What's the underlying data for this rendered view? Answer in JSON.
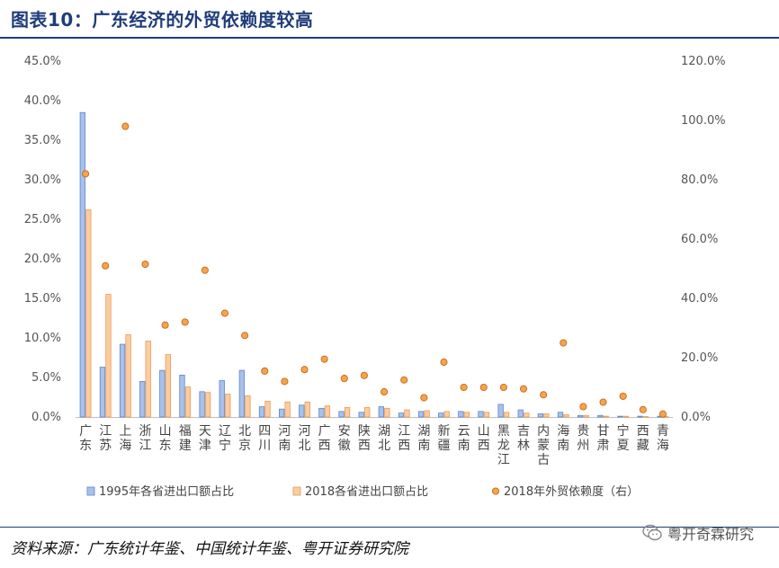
{
  "header": {
    "title": "图表10：广东经济的外贸依赖度较高"
  },
  "footer": {
    "source": "资料来源：广东统计年鉴、中国统计年鉴、粤开证券研究院",
    "watermark": "粤开奇霖研究"
  },
  "icons": {
    "watermark_icon": "wechat-icon"
  },
  "colors": {
    "title": "#1f3d7a",
    "series_1995_fill": "#a9c1ea",
    "series_1995_stroke": "#5b86cf",
    "series_2018_fill": "#fbcca0",
    "series_2018_stroke": "#eb9a52",
    "dot_fill": "#f5a34c",
    "dot_stroke": "#c56a17"
  },
  "chart_data": {
    "type": "bar",
    "categories": [
      "广东",
      "江苏",
      "上海",
      "浙江",
      "山东",
      "福建",
      "天津",
      "辽宁",
      "北京",
      "四川",
      "河南",
      "河北",
      "广西",
      "安徽",
      "陕西",
      "湖北",
      "江西",
      "湖南",
      "新疆",
      "云南",
      "山西",
      "黑龙江",
      "吉林",
      "内蒙古",
      "海南",
      "贵州",
      "甘肃",
      "宁夏",
      "西藏",
      "青海"
    ],
    "series": [
      {
        "name": "1995年各省进出口额占比",
        "axis": "left",
        "kind": "bar",
        "values": [
          38.5,
          6.3,
          9.2,
          4.5,
          5.9,
          5.3,
          3.2,
          4.6,
          5.9,
          1.3,
          1.0,
          1.5,
          1.1,
          0.7,
          0.6,
          1.3,
          0.5,
          0.7,
          0.5,
          0.7,
          0.7,
          1.6,
          0.9,
          0.4,
          0.6,
          0.2,
          0.2,
          0.1,
          0.1,
          0.1
        ]
      },
      {
        "name": "2018各省进出口额占比",
        "axis": "left",
        "kind": "bar",
        "values": [
          26.2,
          15.5,
          10.4,
          9.6,
          7.9,
          3.8,
          3.1,
          2.9,
          2.7,
          2.0,
          1.9,
          1.9,
          1.4,
          1.2,
          1.2,
          1.1,
          0.9,
          0.8,
          0.7,
          0.6,
          0.6,
          0.6,
          0.5,
          0.4,
          0.3,
          0.2,
          0.1,
          0.1,
          0.05,
          0.05
        ]
      },
      {
        "name": "2018年外贸依赖度（右）",
        "axis": "right",
        "kind": "scatter",
        "values": [
          82.0,
          51.0,
          98.0,
          51.5,
          31.0,
          32.0,
          49.5,
          35.0,
          27.5,
          15.5,
          12.0,
          16.0,
          19.5,
          13.0,
          14.0,
          8.5,
          12.5,
          6.5,
          18.5,
          10.0,
          10.0,
          10.0,
          9.5,
          7.5,
          25.0,
          3.5,
          5.0,
          7.0,
          2.5,
          1.0
        ]
      }
    ],
    "yleft": {
      "range": [
        0,
        45
      ],
      "ticks": [
        "0.0%",
        "5.0%",
        "10.0%",
        "15.0%",
        "20.0%",
        "25.0%",
        "30.0%",
        "35.0%",
        "40.0%",
        "45.0%"
      ]
    },
    "yright": {
      "range": [
        0,
        120
      ],
      "ticks": [
        "0.0%",
        "20.0%",
        "40.0%",
        "60.0%",
        "80.0%",
        "100.0%",
        "120.0%"
      ]
    },
    "grid": false,
    "legend": "bottom"
  }
}
